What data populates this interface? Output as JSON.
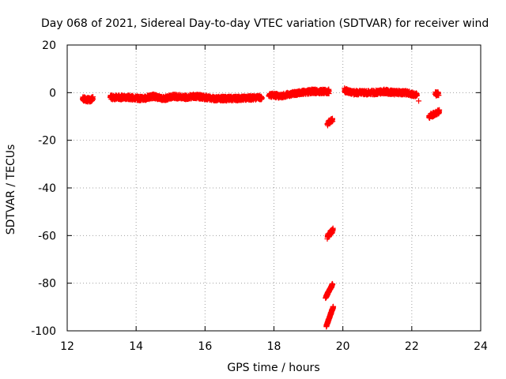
{
  "chart_data": {
    "type": "scatter",
    "title": "Day 068 of 2021, Sidereal Day-to-day VTEC variation (SDTVAR) for receiver wind",
    "xlabel": "GPS time / hours",
    "ylabel": "SDTVAR / TECUs",
    "xlim": [
      12,
      24
    ],
    "ylim": [
      -100,
      20
    ],
    "xticks": [
      12,
      14,
      16,
      18,
      20,
      22,
      24
    ],
    "yticks": [
      20,
      0,
      -20,
      -40,
      -60,
      -80,
      -100
    ],
    "grid": true,
    "marker": "+",
    "series_color": "#ff0000",
    "segments": [
      {
        "x0": 12.45,
        "x1": 12.75,
        "points": [
          [
            12.45,
            -2.5
          ],
          [
            12.55,
            -3
          ],
          [
            12.65,
            -3
          ],
          [
            12.75,
            -2.5
          ]
        ]
      },
      {
        "x0": 13.25,
        "x1": 14.2,
        "points": [
          [
            13.25,
            -2
          ],
          [
            13.5,
            -2
          ],
          [
            13.8,
            -2
          ],
          [
            14.0,
            -2.3
          ],
          [
            14.2,
            -2.5
          ]
        ]
      },
      {
        "x0": 14.2,
        "x1": 17.65,
        "points": [
          [
            14.2,
            -2.5
          ],
          [
            14.5,
            -1.5
          ],
          [
            14.8,
            -2.5
          ],
          [
            15.1,
            -1.5
          ],
          [
            15.4,
            -2
          ],
          [
            15.7,
            -1.5
          ],
          [
            16.0,
            -2
          ],
          [
            16.3,
            -2.5
          ],
          [
            16.6,
            -2.5
          ],
          [
            16.9,
            -2.5
          ],
          [
            17.2,
            -2.3
          ],
          [
            17.65,
            -2
          ]
        ]
      },
      {
        "x0": 17.85,
        "x1": 19.6,
        "points": [
          [
            17.85,
            -1
          ],
          [
            18.2,
            -1.5
          ],
          [
            18.5,
            -0.5
          ],
          [
            18.8,
            0
          ],
          [
            19.1,
            0.5
          ],
          [
            19.4,
            0.5
          ],
          [
            19.6,
            0.5
          ]
        ]
      },
      {
        "x0": 19.55,
        "x1": 19.7,
        "points": [
          [
            19.55,
            -13
          ],
          [
            19.7,
            -11.5
          ]
        ]
      },
      {
        "x0": 19.55,
        "x1": 19.72,
        "points": [
          [
            19.55,
            -60.5
          ],
          [
            19.72,
            -57.5
          ]
        ]
      },
      {
        "x0": 19.5,
        "x1": 19.7,
        "points": [
          [
            19.5,
            -86
          ],
          [
            19.7,
            -80.5
          ]
        ]
      },
      {
        "x0": 19.52,
        "x1": 19.72,
        "points": [
          [
            19.52,
            -98
          ],
          [
            19.72,
            -90
          ]
        ]
      },
      {
        "x0": 20.05,
        "x1": 22.15,
        "points": [
          [
            20.05,
            1
          ],
          [
            20.3,
            0
          ],
          [
            20.6,
            0
          ],
          [
            20.9,
            0
          ],
          [
            21.2,
            0.5
          ],
          [
            21.5,
            0
          ],
          [
            21.8,
            0
          ],
          [
            22.15,
            -1
          ]
        ]
      },
      {
        "x0": 22.5,
        "x1": 22.8,
        "points": [
          [
            22.5,
            -10
          ],
          [
            22.65,
            -9
          ],
          [
            22.8,
            -8
          ]
        ]
      },
      {
        "x0": 22.68,
        "x1": 22.78,
        "points": [
          [
            22.68,
            -0.5
          ],
          [
            22.78,
            -0.5
          ]
        ]
      }
    ],
    "isolated_points": [
      [
        22.2,
        -3.5
      ]
    ]
  }
}
